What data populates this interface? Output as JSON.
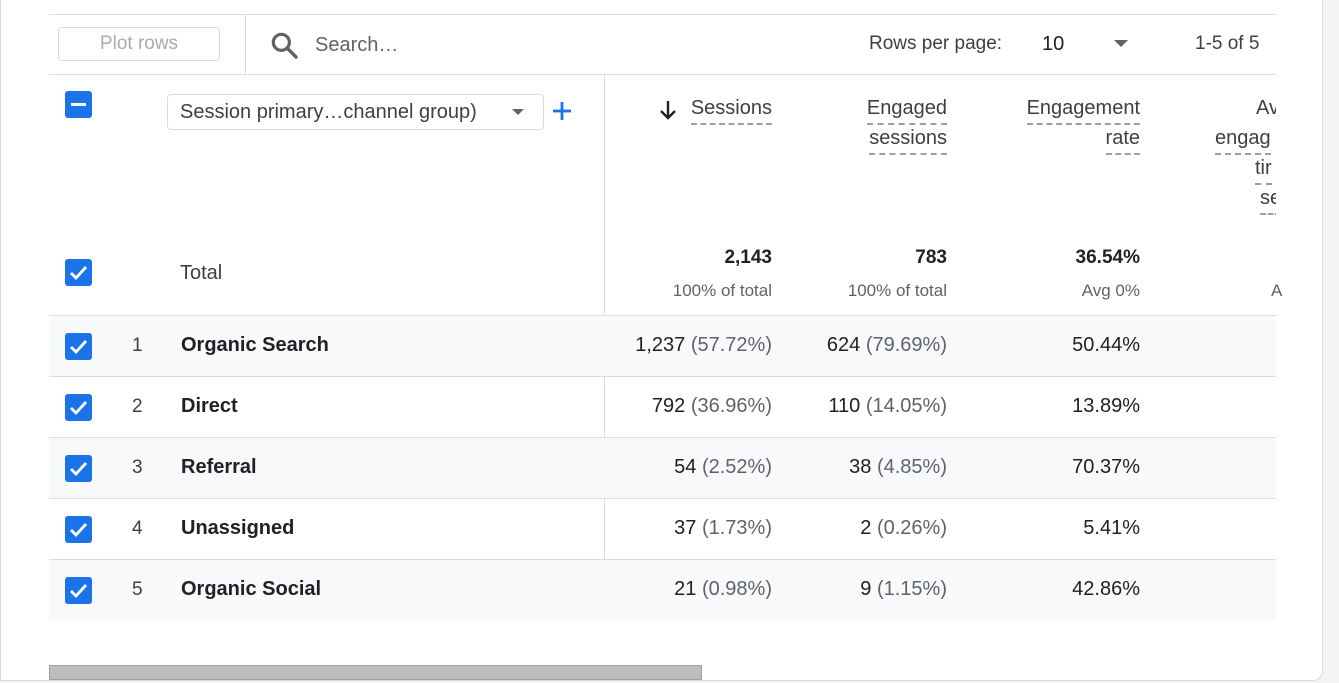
{
  "toolbar": {
    "plot_rows_label": "Plot rows",
    "search_placeholder": "Search…",
    "rows_per_page_label": "Rows per page:",
    "rows_per_page_value": "10",
    "pagination": "1-5 of 5"
  },
  "dimension": {
    "label": "Session primary…channel group)"
  },
  "columns": {
    "sessions": "Sessions",
    "engaged_line1": "Engaged",
    "engaged_line2": "sessions",
    "engrate_line1": "Engagement",
    "engrate_line2": "rate",
    "avg_line1": "Av",
    "avg_line2": "engag",
    "avg_line3": "tir",
    "avg_line4": "se"
  },
  "totals": {
    "label": "Total",
    "sessions": "2,143",
    "sessions_sub": "100% of total",
    "engaged": "783",
    "engaged_sub": "100% of total",
    "engrate": "36.54%",
    "engrate_sub": "Avg 0%",
    "avg_sub": "A"
  },
  "rows": [
    {
      "num": "1",
      "name": "Organic Search",
      "sessions": "1,237",
      "sessions_pct": "(57.72%)",
      "engaged": "624",
      "engaged_pct": "(79.69%)",
      "engrate": "50.44%"
    },
    {
      "num": "2",
      "name": "Direct",
      "sessions": "792",
      "sessions_pct": "(36.96%)",
      "engaged": "110",
      "engaged_pct": "(14.05%)",
      "engrate": "13.89%"
    },
    {
      "num": "3",
      "name": "Referral",
      "sessions": "54",
      "sessions_pct": "(2.52%)",
      "engaged": "38",
      "engaged_pct": "(4.85%)",
      "engrate": "70.37%"
    },
    {
      "num": "4",
      "name": "Unassigned",
      "sessions": "37",
      "sessions_pct": "(1.73%)",
      "engaged": "2",
      "engaged_pct": "(0.26%)",
      "engrate": "5.41%"
    },
    {
      "num": "5",
      "name": "Organic Social",
      "sessions": "21",
      "sessions_pct": "(0.98%)",
      "engaged": "9",
      "engaged_pct": "(1.15%)",
      "engrate": "42.86%"
    }
  ],
  "icons": {
    "search": "search-icon",
    "dropdown": "chevron-down-icon",
    "add": "plus-icon",
    "sort": "arrow-down-icon"
  },
  "colors": {
    "accent": "#1a73e8",
    "row_alt": "#f8f9fa",
    "border": "#dadce0"
  }
}
